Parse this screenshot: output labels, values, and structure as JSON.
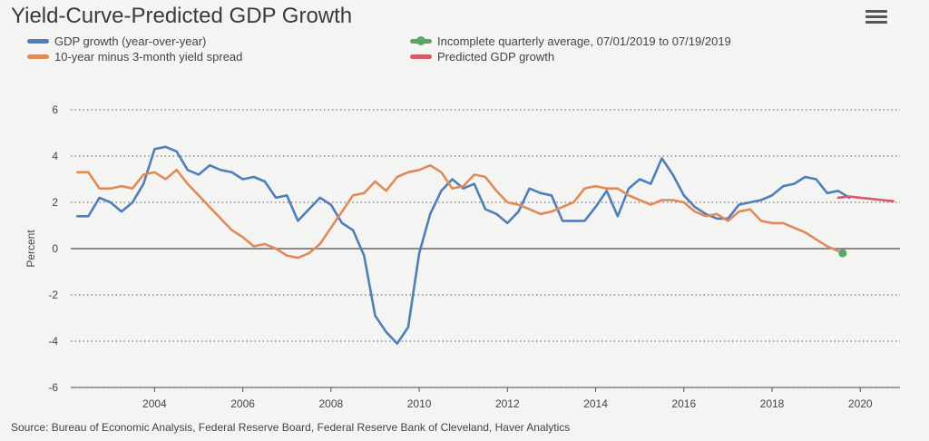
{
  "page": {
    "title": "Yield-Curve-Predicted GDP Growth",
    "source": "Source: Bureau of Economic Analysis, Federal Reserve Board, Federal Reserve Bank of Cleveland, Haver Analytics"
  },
  "menu": {
    "icon": "hamburger-menu-icon"
  },
  "legend": [
    {
      "label": "GDP growth (year-over-year)",
      "color": "#4f7fb9",
      "dot": false
    },
    {
      "label": "10-year minus 3-month yield spread",
      "color": "#e08a5a",
      "dot": false
    },
    {
      "label": "Incomplete quarterly average, 07/01/2019 to 07/19/2019",
      "color": "#5aa66a",
      "dot": true
    },
    {
      "label": "Predicted GDP growth",
      "color": "#d65a6a",
      "dot": false
    }
  ],
  "chart_data": {
    "type": "line",
    "title": "Yield-Curve-Predicted GDP Growth",
    "ylabel": "Percent",
    "xlim": [
      2002.1,
      2020.9
    ],
    "ylim": [
      -6,
      6
    ],
    "x_ticks": [
      2004,
      2006,
      2008,
      2010,
      2012,
      2014,
      2016,
      2018,
      2020
    ],
    "y_ticks": [
      6,
      4,
      2,
      0,
      -2,
      -4,
      -6
    ],
    "grid": "horizontal-dotted",
    "zero_line": true,
    "legend_position": "top",
    "series": [
      {
        "name": "GDP growth (year-over-year)",
        "color": "#4f7fb9",
        "points": [
          [
            2002.25,
            1.4
          ],
          [
            2002.5,
            1.4
          ],
          [
            2002.75,
            2.2
          ],
          [
            2003.0,
            2.0
          ],
          [
            2003.25,
            1.6
          ],
          [
            2003.5,
            2.0
          ],
          [
            2003.75,
            2.8
          ],
          [
            2004.0,
            4.3
          ],
          [
            2004.25,
            4.4
          ],
          [
            2004.5,
            4.2
          ],
          [
            2004.75,
            3.4
          ],
          [
            2005.0,
            3.2
          ],
          [
            2005.25,
            3.6
          ],
          [
            2005.5,
            3.4
          ],
          [
            2005.75,
            3.3
          ],
          [
            2006.0,
            3.0
          ],
          [
            2006.25,
            3.1
          ],
          [
            2006.5,
            2.9
          ],
          [
            2006.75,
            2.2
          ],
          [
            2007.0,
            2.3
          ],
          [
            2007.25,
            1.2
          ],
          [
            2007.5,
            1.7
          ],
          [
            2007.75,
            2.2
          ],
          [
            2008.0,
            1.9
          ],
          [
            2008.25,
            1.1
          ],
          [
            2008.5,
            0.8
          ],
          [
            2008.75,
            -0.3
          ],
          [
            2009.0,
            -2.9
          ],
          [
            2009.25,
            -3.6
          ],
          [
            2009.5,
            -4.1
          ],
          [
            2009.75,
            -3.4
          ],
          [
            2010.0,
            -0.2
          ],
          [
            2010.25,
            1.5
          ],
          [
            2010.5,
            2.5
          ],
          [
            2010.75,
            3.0
          ],
          [
            2011.0,
            2.6
          ],
          [
            2011.25,
            2.8
          ],
          [
            2011.5,
            1.7
          ],
          [
            2011.75,
            1.5
          ],
          [
            2012.0,
            1.1
          ],
          [
            2012.25,
            1.6
          ],
          [
            2012.5,
            2.6
          ],
          [
            2012.75,
            2.4
          ],
          [
            2013.0,
            2.3
          ],
          [
            2013.25,
            1.2
          ],
          [
            2013.5,
            1.2
          ],
          [
            2013.75,
            1.2
          ],
          [
            2014.0,
            1.8
          ],
          [
            2014.25,
            2.5
          ],
          [
            2014.5,
            1.4
          ],
          [
            2014.75,
            2.6
          ],
          [
            2015.0,
            3.0
          ],
          [
            2015.25,
            2.8
          ],
          [
            2015.5,
            3.9
          ],
          [
            2015.75,
            3.2
          ],
          [
            2016.0,
            2.3
          ],
          [
            2016.25,
            1.8
          ],
          [
            2016.5,
            1.5
          ],
          [
            2016.75,
            1.3
          ],
          [
            2017.0,
            1.3
          ],
          [
            2017.25,
            1.9
          ],
          [
            2017.5,
            2.0
          ],
          [
            2017.75,
            2.1
          ],
          [
            2018.0,
            2.3
          ],
          [
            2018.25,
            2.7
          ],
          [
            2018.5,
            2.8
          ],
          [
            2018.75,
            3.1
          ],
          [
            2019.0,
            3.0
          ],
          [
            2019.25,
            2.4
          ],
          [
            2019.5,
            2.5
          ],
          [
            2019.75,
            2.2
          ]
        ]
      },
      {
        "name": "10-year minus 3-month yield spread",
        "color": "#e08a5a",
        "points": [
          [
            2002.25,
            3.3
          ],
          [
            2002.5,
            3.3
          ],
          [
            2002.75,
            2.6
          ],
          [
            2003.0,
            2.6
          ],
          [
            2003.25,
            2.7
          ],
          [
            2003.5,
            2.6
          ],
          [
            2003.75,
            3.2
          ],
          [
            2004.0,
            3.3
          ],
          [
            2004.25,
            3.0
          ],
          [
            2004.5,
            3.4
          ],
          [
            2004.75,
            2.8
          ],
          [
            2005.0,
            2.3
          ],
          [
            2005.25,
            1.8
          ],
          [
            2005.5,
            1.3
          ],
          [
            2005.75,
            0.8
          ],
          [
            2006.0,
            0.5
          ],
          [
            2006.25,
            0.1
          ],
          [
            2006.5,
            0.2
          ],
          [
            2006.75,
            0.0
          ],
          [
            2007.0,
            -0.3
          ],
          [
            2007.25,
            -0.4
          ],
          [
            2007.5,
            -0.2
          ],
          [
            2007.75,
            0.2
          ],
          [
            2008.0,
            0.9
          ],
          [
            2008.25,
            1.6
          ],
          [
            2008.5,
            2.3
          ],
          [
            2008.75,
            2.4
          ],
          [
            2009.0,
            2.9
          ],
          [
            2009.25,
            2.5
          ],
          [
            2009.5,
            3.1
          ],
          [
            2009.75,
            3.3
          ],
          [
            2010.0,
            3.4
          ],
          [
            2010.25,
            3.6
          ],
          [
            2010.5,
            3.3
          ],
          [
            2010.75,
            2.6
          ],
          [
            2011.0,
            2.7
          ],
          [
            2011.25,
            3.2
          ],
          [
            2011.5,
            3.1
          ],
          [
            2011.75,
            2.5
          ],
          [
            2012.0,
            2.0
          ],
          [
            2012.25,
            1.9
          ],
          [
            2012.5,
            1.7
          ],
          [
            2012.75,
            1.5
          ],
          [
            2013.0,
            1.6
          ],
          [
            2013.25,
            1.8
          ],
          [
            2013.5,
            2.0
          ],
          [
            2013.75,
            2.6
          ],
          [
            2014.0,
            2.7
          ],
          [
            2014.25,
            2.6
          ],
          [
            2014.5,
            2.6
          ],
          [
            2014.75,
            2.3
          ],
          [
            2015.0,
            2.1
          ],
          [
            2015.25,
            1.9
          ],
          [
            2015.5,
            2.1
          ],
          [
            2015.75,
            2.1
          ],
          [
            2016.0,
            2.0
          ],
          [
            2016.25,
            1.6
          ],
          [
            2016.5,
            1.4
          ],
          [
            2016.75,
            1.5
          ],
          [
            2017.0,
            1.2
          ],
          [
            2017.25,
            1.6
          ],
          [
            2017.5,
            1.7
          ],
          [
            2017.75,
            1.2
          ],
          [
            2018.0,
            1.1
          ],
          [
            2018.25,
            1.1
          ],
          [
            2018.5,
            0.9
          ],
          [
            2018.75,
            0.7
          ],
          [
            2019.0,
            0.4
          ],
          [
            2019.25,
            0.1
          ],
          [
            2019.5,
            -0.1
          ]
        ]
      },
      {
        "name": "Incomplete quarterly average, 07/01/2019 to 07/19/2019",
        "color": "#5aa66a",
        "points": [
          [
            2019.6,
            -0.2
          ]
        ]
      },
      {
        "name": "Predicted GDP growth",
        "color": "#d65a6a",
        "points": [
          [
            2019.5,
            2.2
          ],
          [
            2019.75,
            2.25
          ],
          [
            2020.0,
            2.2
          ],
          [
            2020.25,
            2.15
          ],
          [
            2020.5,
            2.1
          ],
          [
            2020.75,
            2.05
          ]
        ]
      }
    ]
  }
}
